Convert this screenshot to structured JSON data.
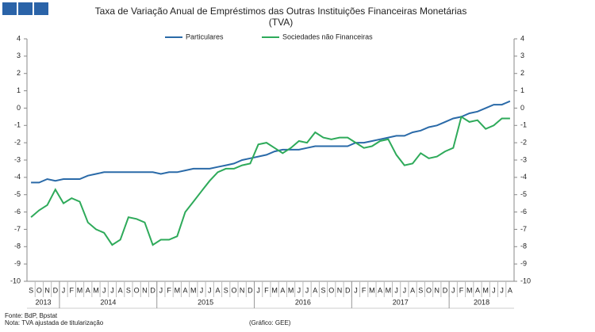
{
  "chart_data": {
    "type": "line",
    "title": "Taxa de Variação Anual de Empréstimos das Outras Instituições Financeiras Monetárias",
    "subtitle": "(TVA)",
    "categories": [
      "S",
      "O",
      "N",
      "D",
      "J",
      "F",
      "M",
      "A",
      "M",
      "J",
      "J",
      "A",
      "S",
      "O",
      "N",
      "D",
      "J",
      "F",
      "M",
      "A",
      "M",
      "J",
      "J",
      "A",
      "S",
      "O",
      "N",
      "D",
      "J",
      "F",
      "M",
      "A",
      "M",
      "J",
      "J",
      "A",
      "S",
      "O",
      "N",
      "D",
      "J",
      "F",
      "M",
      "A",
      "M",
      "J",
      "J",
      "A",
      "S",
      "O",
      "N",
      "D",
      "J",
      "F",
      "M",
      "A",
      "M",
      "J",
      "J",
      "A"
    ],
    "years": [
      "2013",
      "2014",
      "2015",
      "2016",
      "2017",
      "2018"
    ],
    "series": [
      {
        "name": "Particulares",
        "color": "#2a6aa8",
        "values": [
          -4.3,
          -4.3,
          -4.1,
          -4.2,
          -4.1,
          -4.1,
          -4.1,
          -3.9,
          -3.8,
          -3.7,
          -3.7,
          -3.7,
          -3.7,
          -3.7,
          -3.7,
          -3.7,
          -3.8,
          -3.7,
          -3.7,
          -3.6,
          -3.5,
          -3.5,
          -3.5,
          -3.4,
          -3.3,
          -3.2,
          -3.0,
          -2.9,
          -2.8,
          -2.7,
          -2.5,
          -2.4,
          -2.4,
          -2.4,
          -2.3,
          -2.2,
          -2.2,
          -2.2,
          -2.2,
          -2.2,
          -2.0,
          -2.0,
          -1.9,
          -1.8,
          -1.7,
          -1.6,
          -1.6,
          -1.4,
          -1.3,
          -1.1,
          -1.0,
          -0.8,
          -0.6,
          -0.5,
          -0.3,
          -0.2,
          0.0,
          0.2,
          0.2,
          0.4
        ]
      },
      {
        "name": "Sociedades não Financeiras",
        "color": "#2eaa5a",
        "values": [
          -6.3,
          -5.9,
          -5.6,
          -4.7,
          -5.5,
          -5.2,
          -5.4,
          -6.6,
          -7.0,
          -7.2,
          -7.9,
          -7.6,
          -6.3,
          -6.4,
          -6.6,
          -7.9,
          -7.6,
          -7.6,
          -7.4,
          -6.0,
          -5.4,
          -4.8,
          -4.2,
          -3.7,
          -3.5,
          -3.5,
          -3.3,
          -3.2,
          -2.1,
          -2.0,
          -2.3,
          -2.6,
          -2.3,
          -1.9,
          -2.0,
          -1.4,
          -1.7,
          -1.8,
          -1.7,
          -1.7,
          -2.0,
          -2.3,
          -2.2,
          -1.9,
          -1.8,
          -2.7,
          -3.3,
          -3.2,
          -2.6,
          -2.9,
          -2.8,
          -2.5,
          -2.3,
          -0.5,
          -0.8,
          -0.7,
          -1.2,
          -1.0,
          -0.6,
          -0.6
        ]
      }
    ],
    "ylim": [
      -10,
      4
    ],
    "yticks": [
      -10,
      -9,
      -8,
      -7,
      -6,
      -5,
      -4,
      -3,
      -2,
      -1,
      0,
      1,
      2,
      3,
      4
    ],
    "y2lim": [
      -10,
      4
    ],
    "y2ticks": [
      -10,
      -9,
      -8,
      -7,
      -6,
      -5,
      -4,
      -3,
      -2,
      -1,
      0,
      1,
      2,
      3,
      4
    ],
    "legend": "top",
    "grid": false,
    "source": "Fonte: BdP, Bpstat",
    "note": "Nota: TVA ajustada de titularização",
    "credit": "(Gráfico: GEE)"
  }
}
